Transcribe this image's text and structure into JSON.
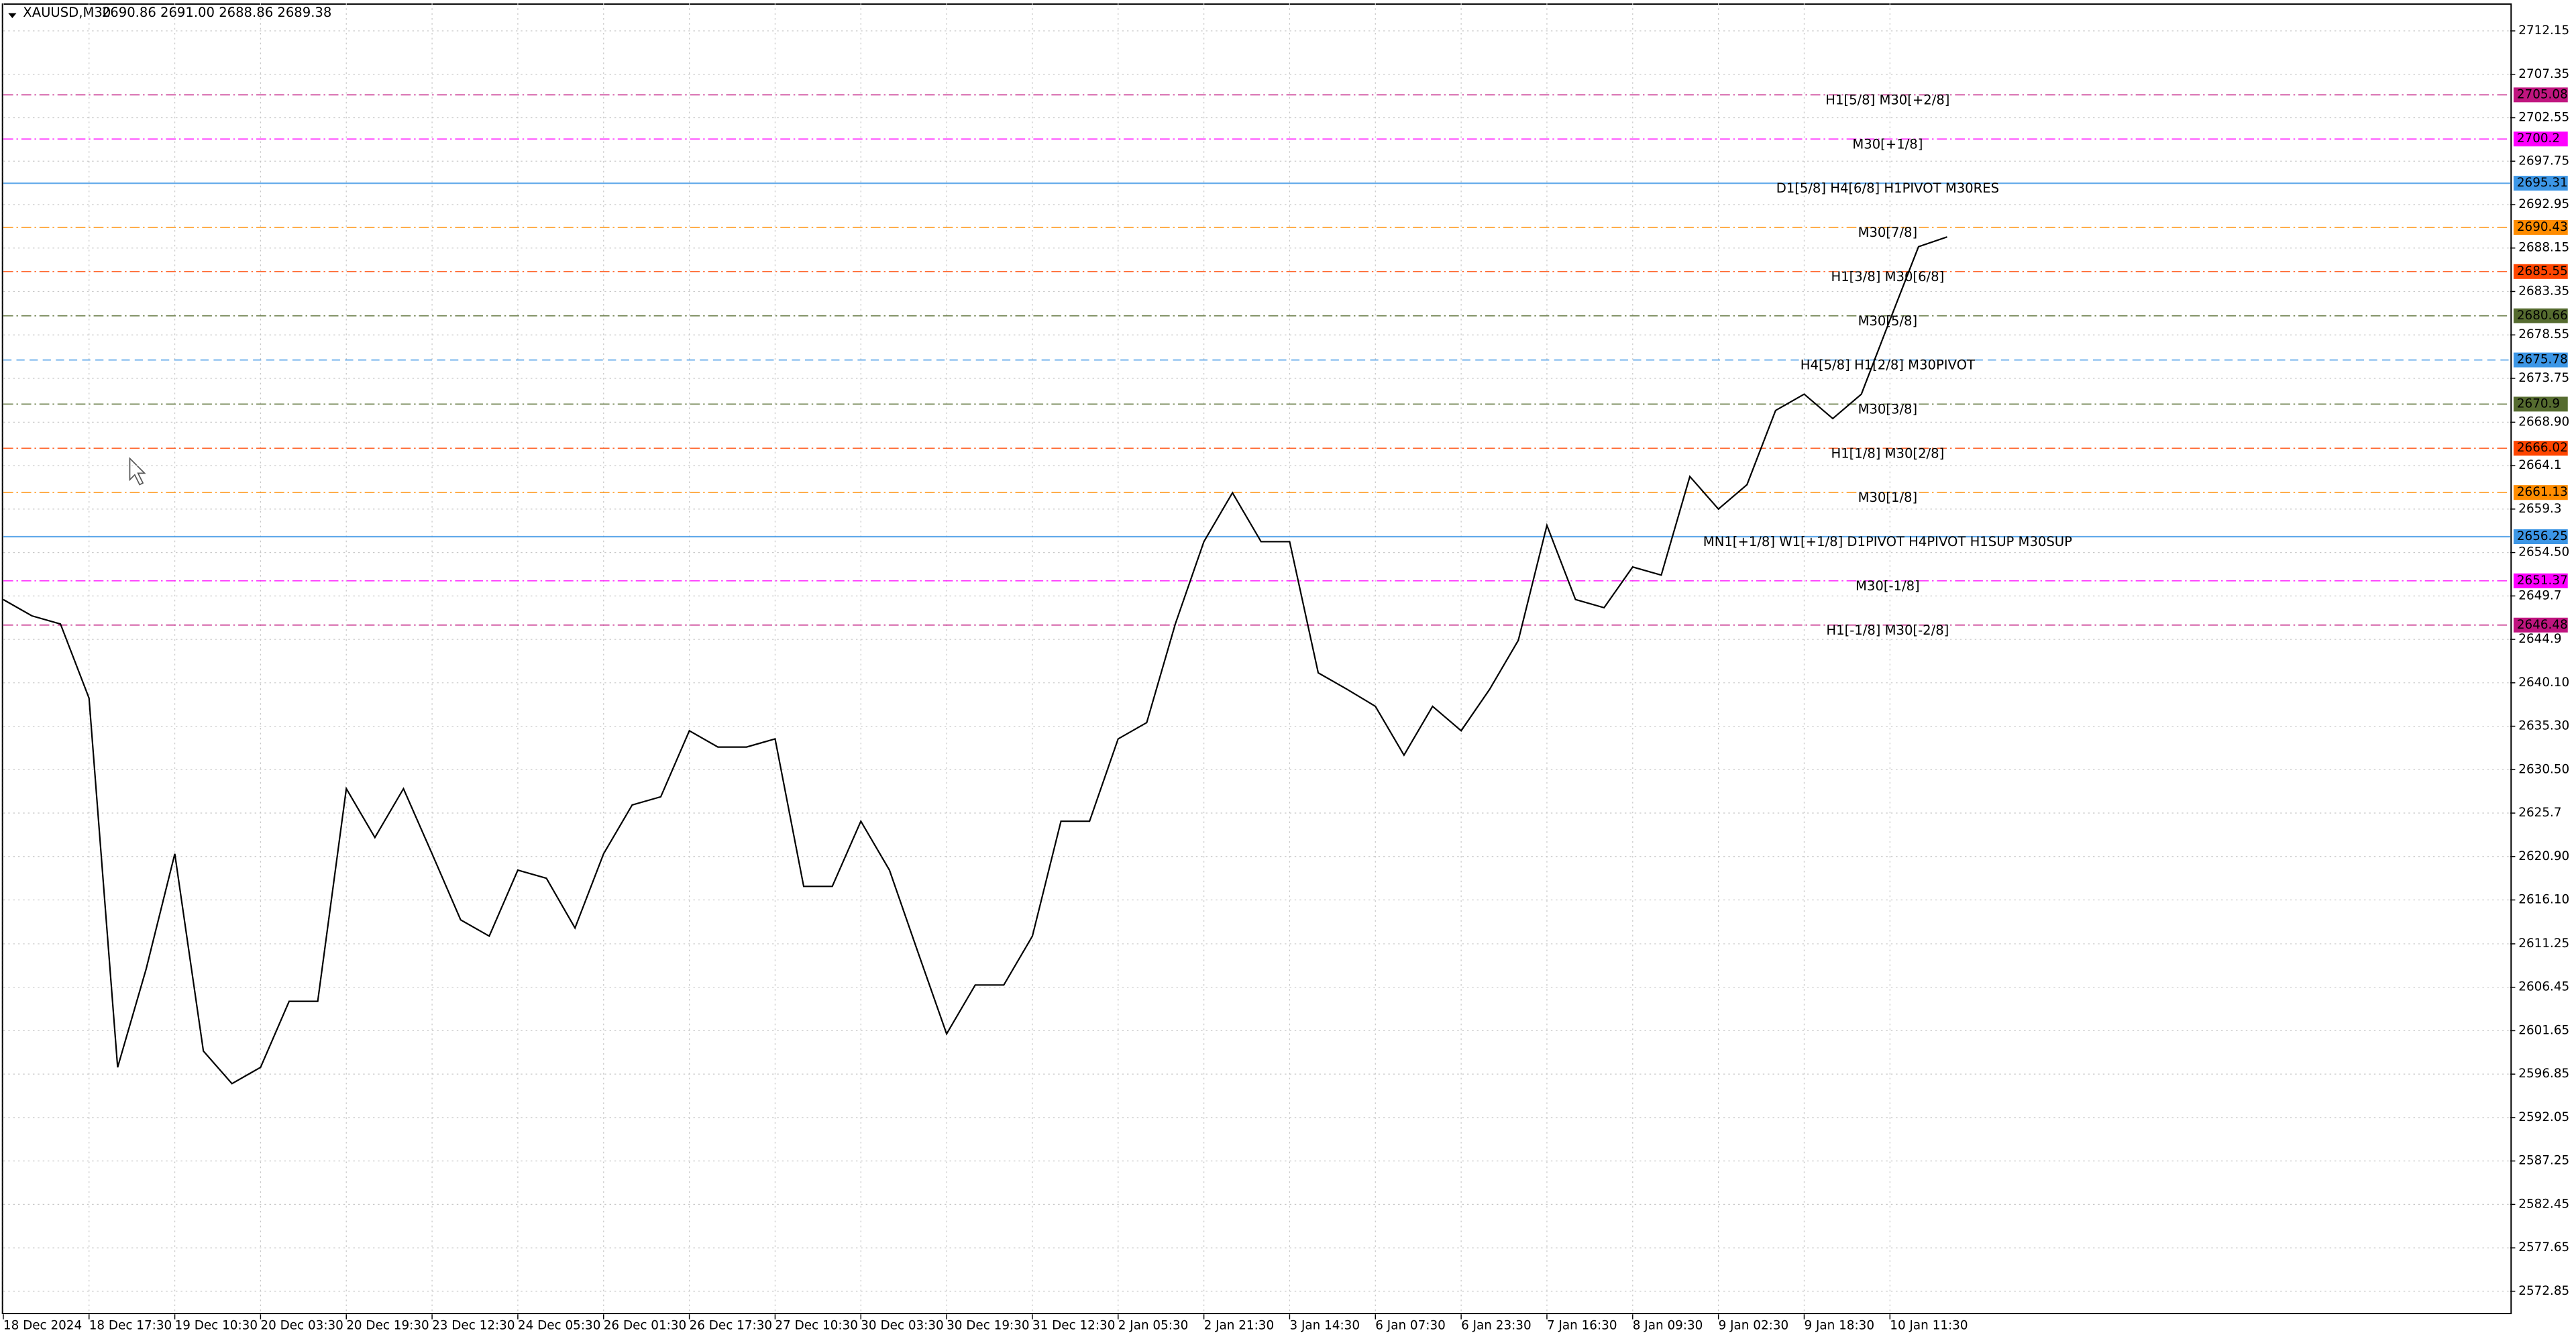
{
  "header": {
    "symbol": "XAUUSD,M30",
    "quote": "2690.86 2691.00 2688.86 2689.38"
  },
  "chart_data": {
    "type": "line",
    "grid": true,
    "categories": [
      "18 Dec 2024",
      null,
      null,
      "18 Dec 17:30",
      null,
      null,
      "19 Dec 10:30",
      null,
      null,
      "20 Dec 03:30",
      null,
      null,
      "20 Dec 19:30",
      null,
      null,
      "23 Dec 12:30",
      null,
      null,
      "24 Dec 05:30",
      null,
      null,
      "26 Dec 01:30",
      null,
      null,
      "26 Dec 17:30",
      null,
      null,
      "27 Dec 10:30",
      null,
      null,
      "30 Dec 03:30",
      null,
      null,
      "30 Dec 19:30",
      null,
      null,
      "31 Dec 12:30",
      null,
      null,
      "2 Jan 05:30",
      null,
      null,
      "2 Jan 21:30",
      null,
      null,
      "3 Jan 14:30",
      null,
      null,
      "6 Jan 07:30",
      null,
      null,
      "6 Jan 23:30",
      null,
      null,
      "7 Jan 16:30",
      null,
      null,
      "8 Jan 09:30",
      null,
      null,
      "9 Jan 02:30",
      null,
      null,
      "9 Jan 18:30",
      null,
      null,
      "10 Jan 11:30",
      null,
      null
    ],
    "series": [
      {
        "name": "XAUUSD,M30",
        "color": "#000000",
        "values": [
          2649.3,
          2647.5,
          2646.6,
          2638.4,
          2597.6,
          2608.5,
          2621.2,
          2599.4,
          2595.8,
          2597.6,
          2604.9,
          2604.9,
          2628.4,
          2623,
          2628.4,
          2621.2,
          2613.9,
          2612.1,
          2619.4,
          2618.5,
          2613,
          2621.2,
          2626.6,
          2627.5,
          2634.8,
          2633,
          2633,
          2633.9,
          2617.6,
          2617.6,
          2624.8,
          2619.4,
          2610.3,
          2601.3,
          2606.7,
          2606.7,
          2612.1,
          2624.8,
          2624.8,
          2633.9,
          2635.7,
          2646.6,
          2655.7,
          2661.1,
          2655.7,
          2655.7,
          2641.2,
          2639.4,
          2637.5,
          2632.1,
          2637.5,
          2634.8,
          2639.4,
          2644.8,
          2657.5,
          2649.3,
          2648.4,
          2652.9,
          2652,
          2662.9,
          2659.3,
          2662,
          2670.2,
          2672,
          2669.3,
          2672,
          2680.2,
          2688.3,
          2689.38
        ]
      }
    ],
    "ylim": [
      2570.3,
      2715.2
    ],
    "yticks": [
      2712.15,
      2707.35,
      2702.55,
      2697.75,
      2692.95,
      2688.15,
      2683.35,
      2678.55,
      2673.75,
      {
        "value": 2668.9,
        "label": "2668.90"
      },
      2664.1,
      2659.3,
      {
        "value": 2654.5,
        "label": "2654.50"
      },
      2649.7,
      2644.9,
      {
        "value": 2640.1,
        "label": "2640.10"
      },
      {
        "value": 2635.3,
        "label": "2635.30"
      },
      {
        "value": 2630.5,
        "label": "2630.50"
      },
      2625.7,
      {
        "value": 2620.9,
        "label": "2620.90"
      },
      {
        "value": 2616.1,
        "label": "2616.10"
      },
      2611.25,
      2606.45,
      2601.65,
      2596.85,
      2592.05,
      2587.25,
      2582.45,
      2577.65,
      2572.85
    ],
    "levels": [
      {
        "label": "H1[5/8] M30[+2/8]",
        "value": 2705.08,
        "color": "#c0157f",
        "style": "dashdot"
      },
      {
        "label": "M30[+1/8]",
        "value": 2700.2,
        "color": "#ff00ff",
        "style": "dashdot"
      },
      {
        "label": "D1[5/8] H4[6/8] H1PIVOT M30RES",
        "value": 2695.31,
        "color": "#3c96e6",
        "style": "solid"
      },
      {
        "label": "M30[7/8]",
        "value": 2690.43,
        "color": "#ff8c00",
        "style": "dashdot"
      },
      {
        "label": "H1[3/8] M30[6/8]",
        "value": 2685.55,
        "color": "#ff4500",
        "style": "dashdot"
      },
      {
        "label": "M30[5/8]",
        "value": 2680.66,
        "color": "#556b2f",
        "style": "dashdot"
      },
      {
        "label": "H4[5/8] H1[2/8] M30PIVOT",
        "value": 2675.78,
        "color": "#3c96e6",
        "style": "dashed"
      },
      {
        "label": "M30[3/8]",
        "value": 2670.9,
        "color": "#556b2f",
        "style": "dashdot"
      },
      {
        "label": "H1[1/8] M30[2/8]",
        "value": 2666.02,
        "color": "#ff4500",
        "style": "dashdot"
      },
      {
        "label": "M30[1/8]",
        "value": 2661.13,
        "color": "#ff8c00",
        "style": "dashdot"
      },
      {
        "label": "MN1[+1/8] W1[+1/8] D1PIVOT H4PIVOT H1SUP M30SUP",
        "value": 2656.25,
        "color": "#3c96e6",
        "style": "solid"
      },
      {
        "label": "M30[-1/8]",
        "value": 2651.37,
        "color": "#ff00ff",
        "style": "dashdot"
      },
      {
        "label": "H1[-1/8] M30[-2/8]",
        "value": 2646.48,
        "color": "#c0157f",
        "style": "dashdot"
      }
    ]
  }
}
